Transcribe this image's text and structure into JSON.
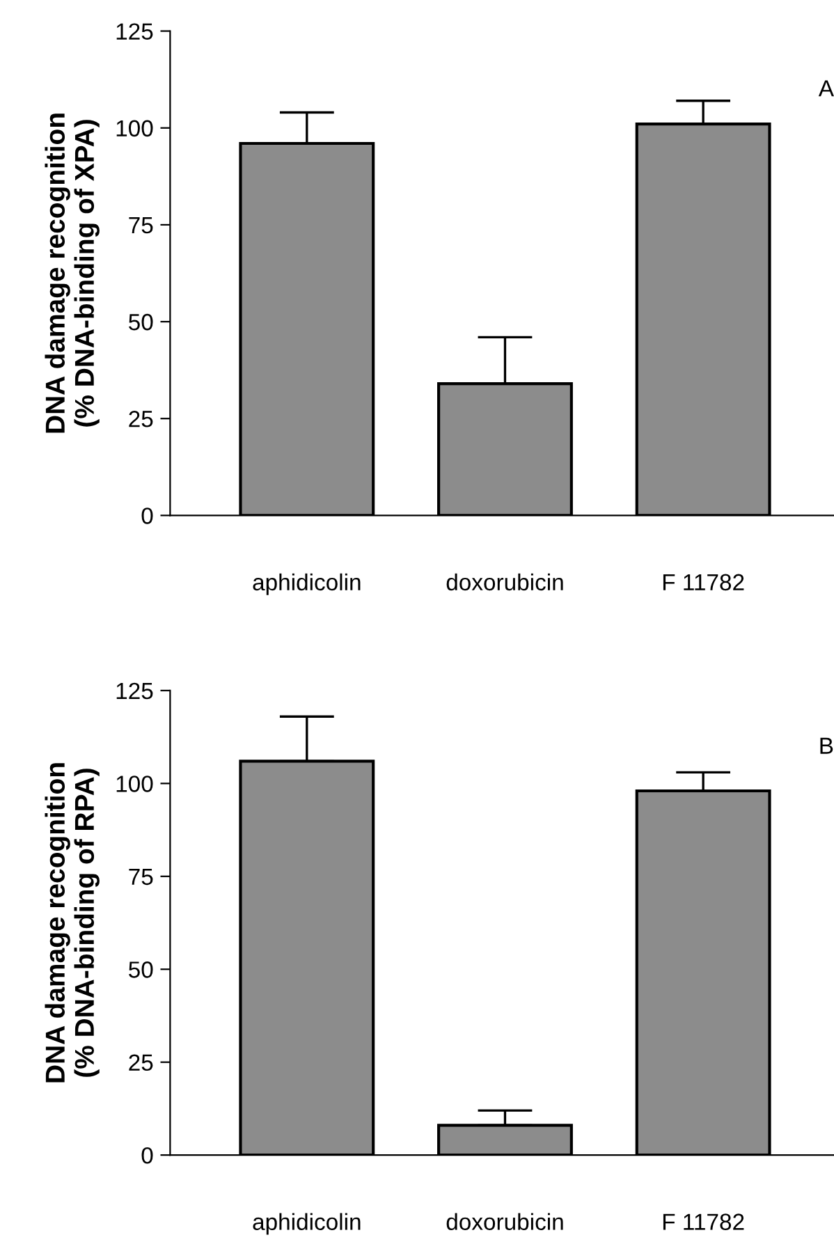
{
  "chart_data": [
    {
      "type": "bar",
      "categories": [
        "aphidicolin",
        "doxorubicin",
        "F 11782"
      ],
      "values": [
        96,
        34,
        101
      ],
      "errors": [
        [
          96,
          104
        ],
        [
          34,
          46
        ],
        [
          101,
          107
        ]
      ],
      "color": "#8c8c8c",
      "ylabel": "DNA damage recognition\n(% DNA-binding of XPA)",
      "ylim": [
        0,
        125
      ],
      "yticks": [
        0,
        25,
        50,
        75,
        100,
        125
      ],
      "annotations": [
        "A"
      ],
      "grid": false,
      "legend": false
    },
    {
      "type": "bar",
      "categories": [
        "aphidicolin",
        "doxorubicin",
        "F 11782"
      ],
      "values": [
        106,
        8,
        98
      ],
      "errors": [
        [
          106,
          118
        ],
        [
          8,
          12
        ],
        [
          98,
          103
        ]
      ],
      "color": "#8c8c8c",
      "ylabel": "DNA damage recognition\n(% DNA-binding of RPA)",
      "ylim": [
        0,
        125
      ],
      "yticks": [
        0,
        25,
        50,
        75,
        100,
        125
      ],
      "annotations": [
        "B"
      ],
      "grid": false,
      "legend": false
    }
  ]
}
